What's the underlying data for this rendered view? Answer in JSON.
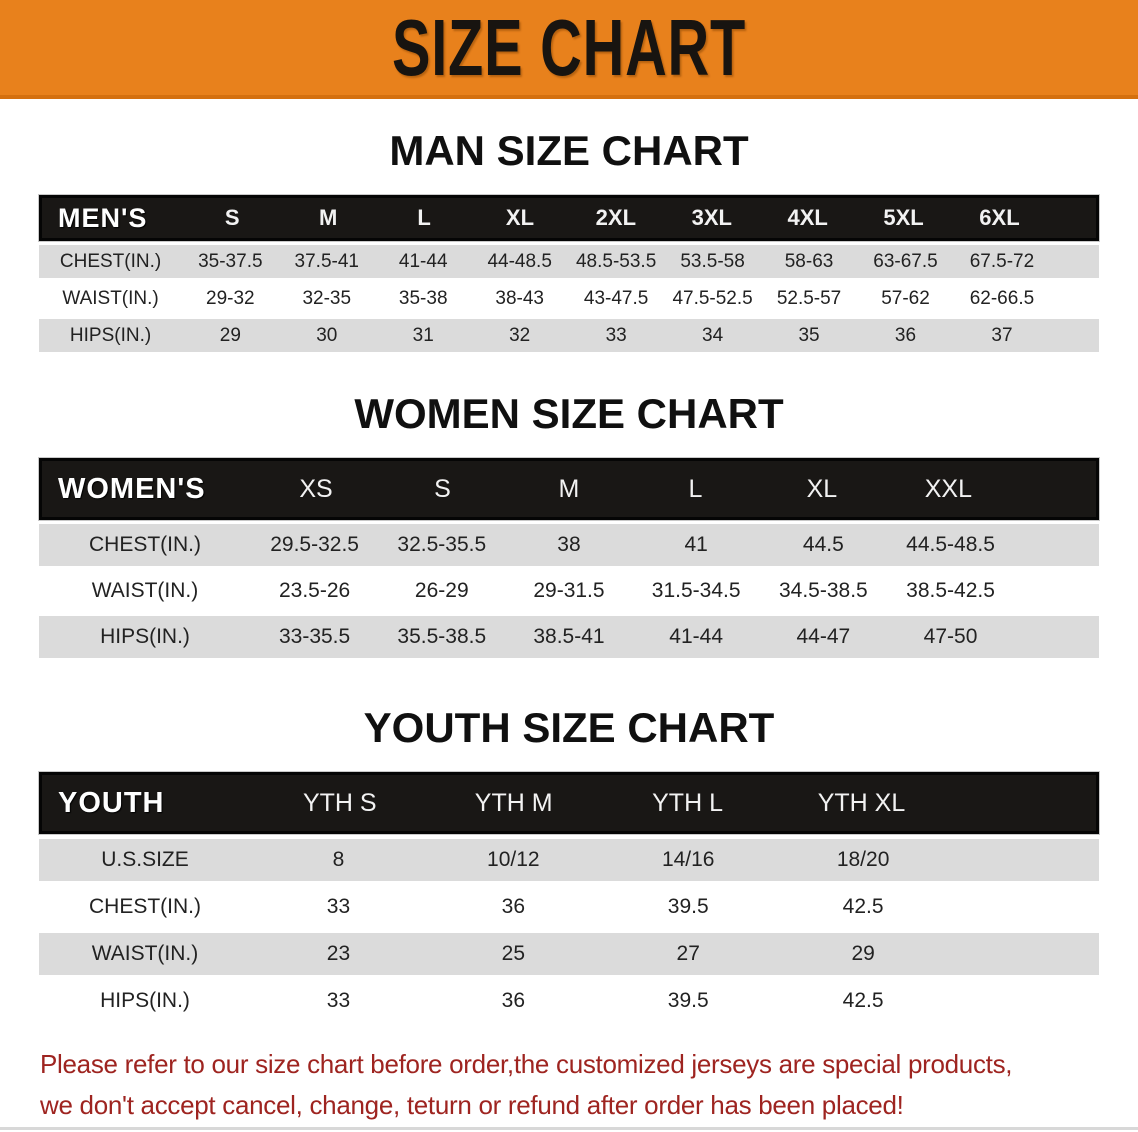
{
  "banner": {
    "title": "SIZE CHART",
    "bg_color": "#e8811c",
    "text_color": "#181410"
  },
  "colors": {
    "band_bg": "#191715",
    "stripe": "#dbdbdb",
    "footer_text": "#9e2420"
  },
  "sections": {
    "men": {
      "heading": "MAN SIZE CHART",
      "header_label": "MEN'S",
      "columns": [
        "S",
        "M",
        "L",
        "XL",
        "2XL",
        "3XL",
        "4XL",
        "5XL",
        "6XL"
      ],
      "rows": [
        {
          "label": "CHEST(IN.)",
          "values": [
            "35-37.5",
            "37.5-41",
            "41-44",
            "44-48.5",
            "48.5-53.5",
            "53.5-58",
            "58-63",
            "63-67.5",
            "67.5-72"
          ]
        },
        {
          "label": "WAIST(IN.)",
          "values": [
            "29-32",
            "32-35",
            "35-38",
            "38-43",
            "43-47.5",
            "47.5-52.5",
            "52.5-57",
            "57-62",
            "62-66.5"
          ]
        },
        {
          "label": "HIPS(IN.)",
          "values": [
            "29",
            "30",
            "31",
            "32",
            "33",
            "34",
            "35",
            "36",
            "37"
          ]
        }
      ]
    },
    "women": {
      "heading": "WOMEN SIZE CHART",
      "header_label": "WOMEN'S",
      "columns": [
        "XS",
        "S",
        "M",
        "L",
        "XL",
        "XXL"
      ],
      "rows": [
        {
          "label": "CHEST(IN.)",
          "values": [
            "29.5-32.5",
            "32.5-35.5",
            "38",
            "41",
            "44.5",
            "44.5-48.5"
          ]
        },
        {
          "label": "WAIST(IN.)",
          "values": [
            "23.5-26",
            "26-29",
            "29-31.5",
            "31.5-34.5",
            "34.5-38.5",
            "38.5-42.5"
          ]
        },
        {
          "label": "HIPS(IN.)",
          "values": [
            "33-35.5",
            "35.5-38.5",
            "38.5-41",
            "41-44",
            "44-47",
            "47-50"
          ]
        }
      ]
    },
    "youth": {
      "heading": "YOUTH SIZE CHART",
      "header_label": "YOUTH",
      "columns": [
        "YTH S",
        "YTH M",
        "YTH L",
        "YTH XL"
      ],
      "rows": [
        {
          "label": "U.S.SIZE",
          "values": [
            "8",
            "10/12",
            "14/16",
            "18/20"
          ]
        },
        {
          "label": "CHEST(IN.)",
          "values": [
            "33",
            "36",
            "39.5",
            "42.5"
          ]
        },
        {
          "label": "WAIST(IN.)",
          "values": [
            "23",
            "25",
            "27",
            "29"
          ]
        },
        {
          "label": "HIPS(IN.)",
          "values": [
            "33",
            "36",
            "39.5",
            "42.5"
          ]
        }
      ]
    }
  },
  "footer": {
    "line1": "Please refer to our size chart before order,the customized jerseys are special products,",
    "line2": "we don't accept cancel, change, teturn or refund after order has been placed!"
  }
}
